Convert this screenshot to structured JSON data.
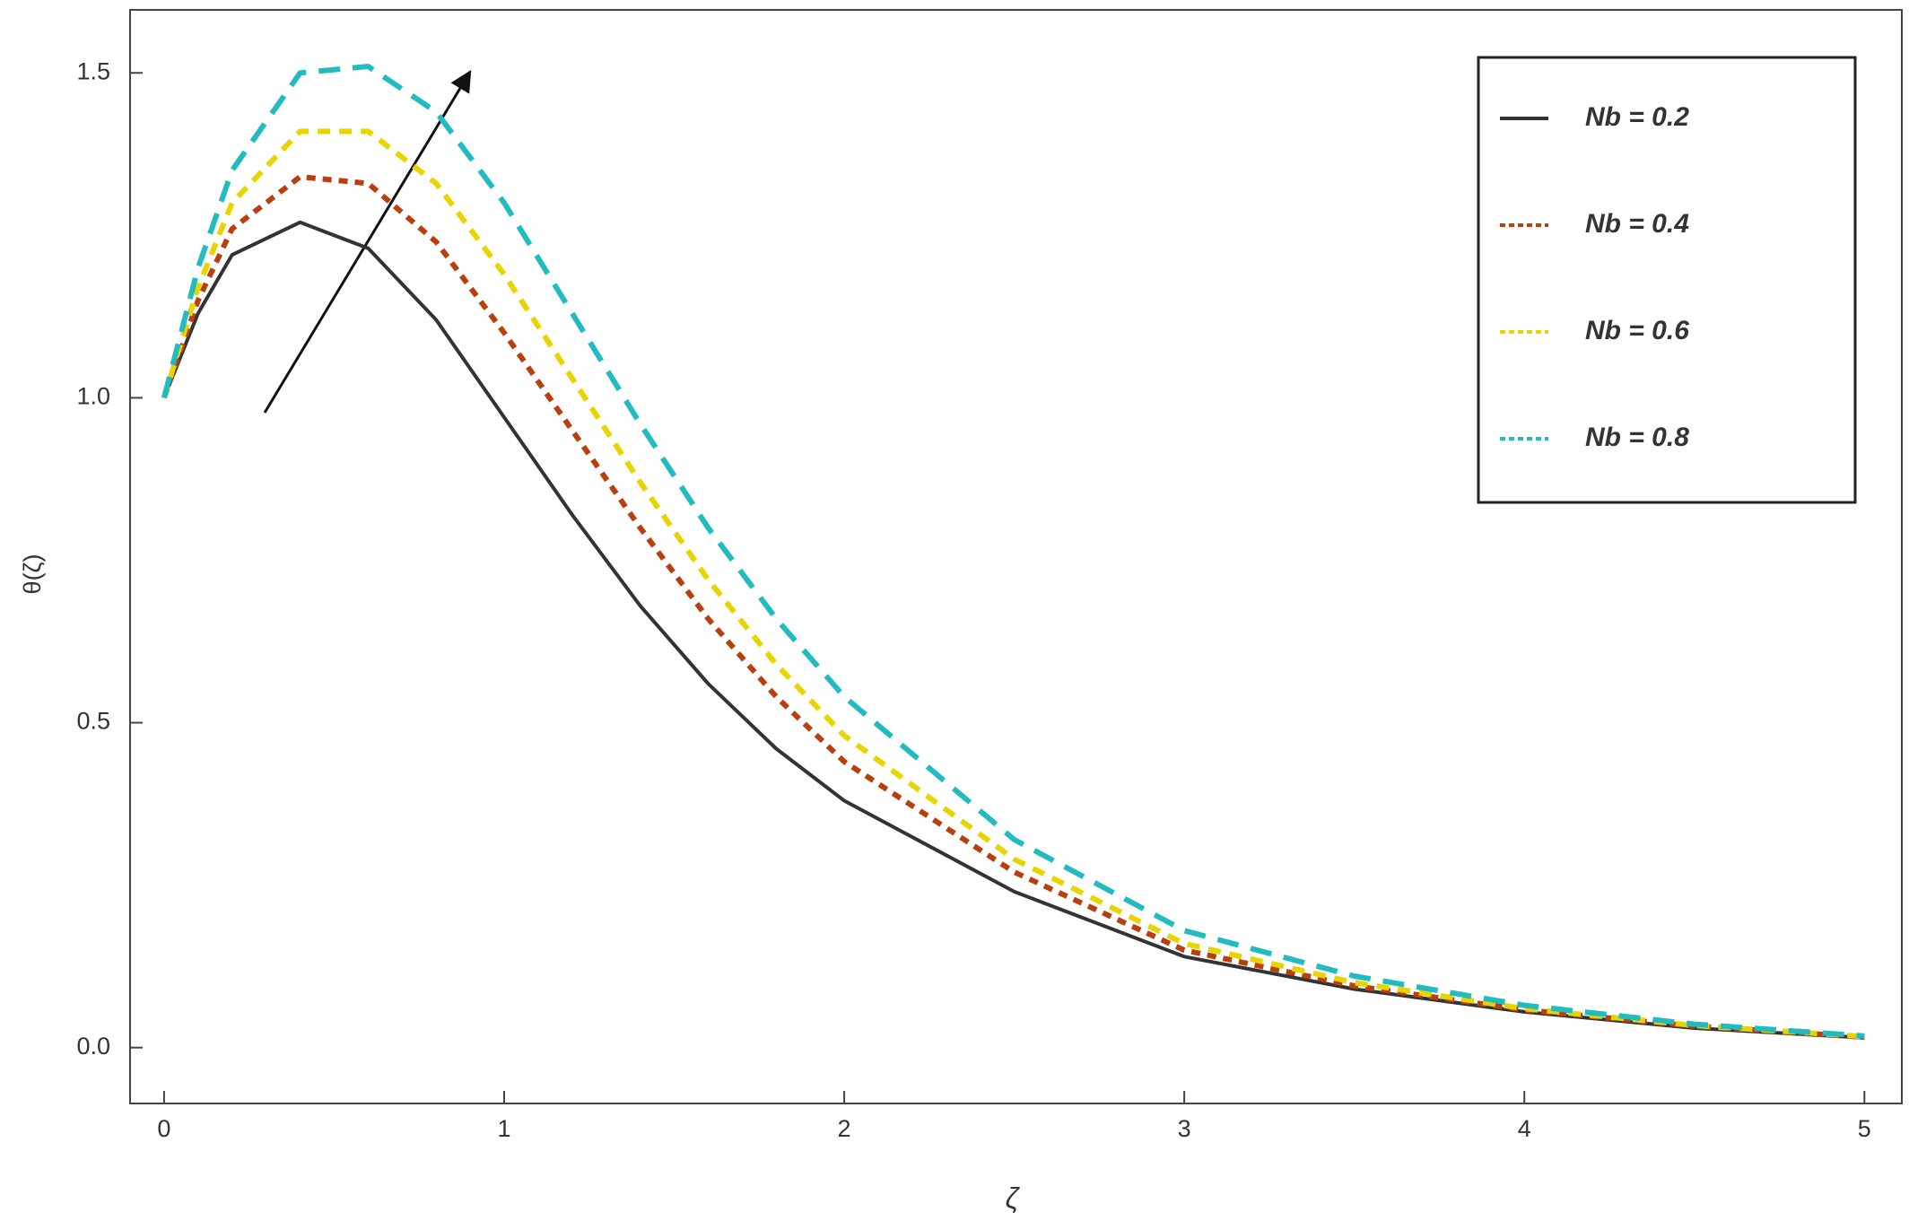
{
  "chart_data": {
    "type": "line",
    "y_label": "θ(ζ)",
    "x_label": "ζ",
    "x": [
      0,
      0.1,
      0.2,
      0.4,
      0.6,
      0.8,
      1.0,
      1.2,
      1.4,
      1.6,
      1.8,
      2.0,
      2.5,
      3,
      3.5,
      4,
      4.5,
      5
    ],
    "series": [
      {
        "name": "Nb = 0.2",
        "color": "#333333",
        "dash": "none",
        "values": [
          1,
          1.13,
          1.22,
          1.27,
          1.23,
          1.12,
          0.97,
          0.82,
          0.68,
          0.56,
          0.46,
          0.38,
          0.24,
          0.14,
          0.09,
          0.055,
          0.03,
          0.015
        ]
      },
      {
        "name": "Nb = 0.4",
        "color": "#b8400e",
        "dash": "10 8",
        "values": [
          1,
          1.15,
          1.26,
          1.34,
          1.33,
          1.24,
          1.1,
          0.95,
          0.8,
          0.66,
          0.54,
          0.44,
          0.27,
          0.15,
          0.095,
          0.058,
          0.033,
          0.016
        ]
      },
      {
        "name": "Nb = 0.6",
        "color": "#e8d400",
        "dash": "14 10",
        "values": [
          1,
          1.17,
          1.3,
          1.41,
          1.41,
          1.33,
          1.19,
          1.03,
          0.87,
          0.72,
          0.59,
          0.48,
          0.29,
          0.16,
          0.1,
          0.06,
          0.034,
          0.017
        ]
      },
      {
        "name": "Nb = 0.8",
        "color": "#22bcc0",
        "dash": "24 14",
        "values": [
          1,
          1.2,
          1.35,
          1.5,
          1.51,
          1.44,
          1.3,
          1.13,
          0.96,
          0.8,
          0.66,
          0.54,
          0.32,
          0.18,
          0.11,
          0.065,
          0.036,
          0.018
        ]
      }
    ],
    "xlim": [
      -0.1,
      5.11
    ],
    "ylim": [
      -0.086,
      1.597
    ],
    "xticks": [
      0,
      1,
      2,
      3,
      4,
      5
    ],
    "yticks": [
      {
        "value": 0,
        "label": "0.0"
      },
      0.5,
      {
        "value": 1,
        "label": "1.0"
      },
      1.5
    ],
    "grid": false,
    "legend": "upper right"
  }
}
